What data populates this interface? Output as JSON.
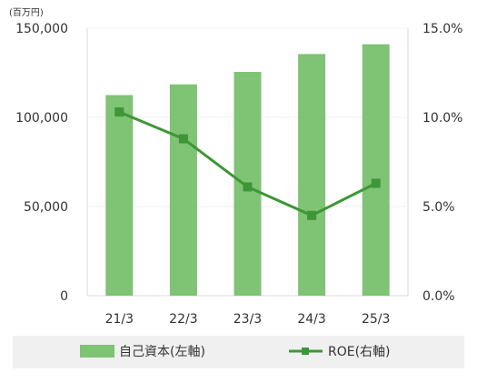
{
  "chart_data": {
    "type": "bar",
    "categories": [
      "21/3",
      "22/3",
      "23/3",
      "24/3",
      "25/3"
    ],
    "series": [
      {
        "name": "自己資本(左軸)",
        "type": "bar",
        "axis": "left",
        "color": "#7fc374",
        "values": [
          112500,
          118500,
          125500,
          135500,
          141000
        ]
      },
      {
        "name": "ROE(右軸)",
        "type": "line",
        "axis": "right",
        "color": "#3e9636",
        "values": [
          10.3,
          8.8,
          6.1,
          4.5,
          6.3
        ]
      }
    ],
    "left_axis": {
      "unit_label": "(百万円)",
      "range": [
        0,
        150000
      ],
      "ticks": [
        0,
        50000,
        100000,
        150000
      ],
      "tick_labels": [
        "0",
        "50,000",
        "100,000",
        "150,000"
      ]
    },
    "right_axis": {
      "range": [
        0,
        15
      ],
      "ticks": [
        0,
        5,
        10,
        15
      ],
      "tick_labels": [
        "0.0%",
        "5.0%",
        "10.0%",
        "15.0%"
      ]
    },
    "grid": true,
    "legend_position": "bottom"
  }
}
